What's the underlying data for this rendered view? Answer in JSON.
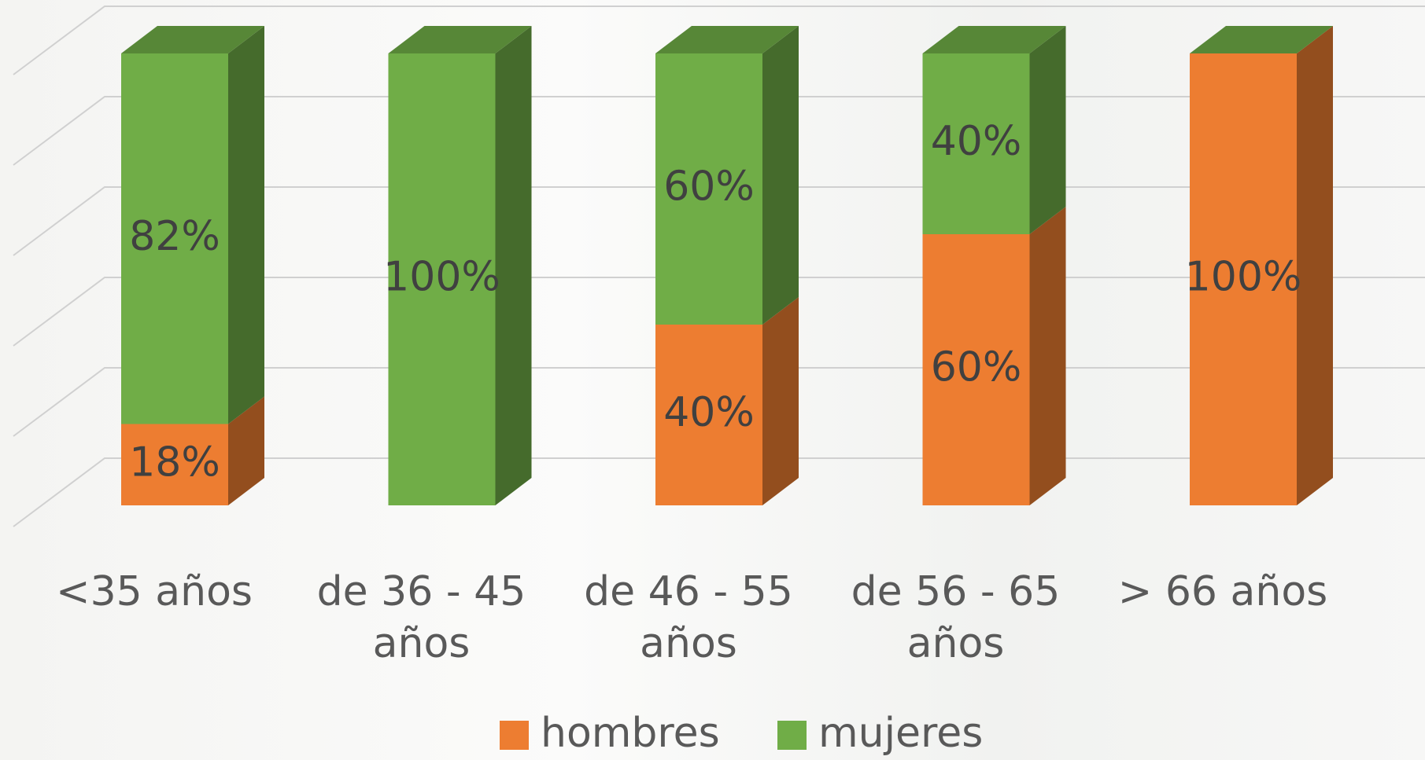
{
  "chart_data": {
    "type": "bar3d_stacked",
    "categories": [
      "<35 años",
      "de 36 - 45 años",
      "de 46 - 55 años",
      "de 56 - 65 años",
      "> 66 años"
    ],
    "series": [
      {
        "name": "hombres",
        "color": "#ED7D31",
        "values": [
          18,
          0,
          40,
          60,
          100
        ],
        "value_labels": [
          "18%",
          null,
          "40%",
          "60%",
          "100%"
        ]
      },
      {
        "name": "mujeres",
        "color": "#70AD47",
        "values": [
          82,
          100,
          60,
          40,
          0
        ],
        "value_labels": [
          "82%",
          "100%",
          "60%",
          "40%",
          null
        ]
      }
    ],
    "ylim": [
      0,
      100
    ],
    "yticks": [
      0,
      20,
      40,
      60,
      80,
      100
    ],
    "grid": true,
    "legend": "bottom"
  }
}
